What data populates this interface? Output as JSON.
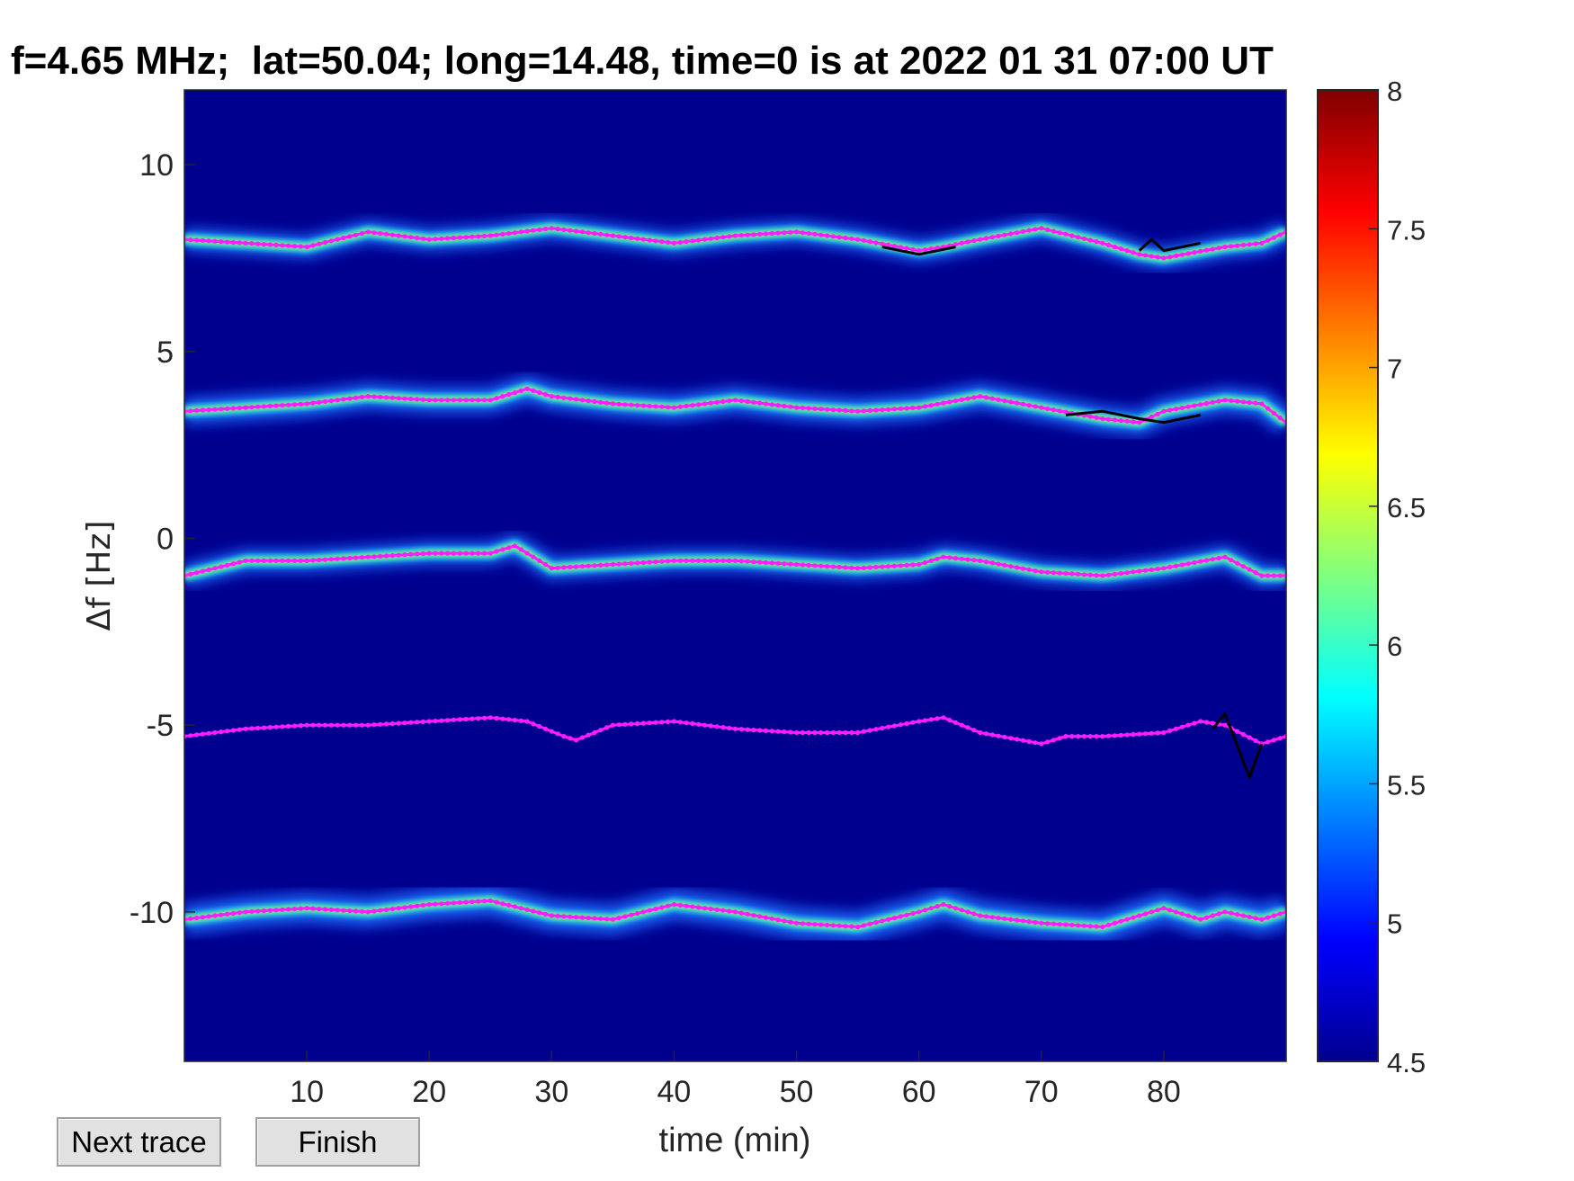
{
  "chart_data": {
    "type": "heatmap",
    "title": "f=4.65 MHz;  lat=50.04; long=14.48, time=0 is at 2022 01 31 07:00 UT",
    "xlabel": "time (min)",
    "ylabel": "Δf [Hz]",
    "xlim": [
      0,
      90
    ],
    "ylim": [
      -14,
      12
    ],
    "x_ticks": [
      10,
      20,
      30,
      40,
      50,
      60,
      70,
      80
    ],
    "x_tick_labels": [
      "10",
      "20",
      "30",
      "40",
      "50",
      "60",
      "70",
      "80"
    ],
    "y_ticks": [
      10,
      5,
      0,
      -5,
      -10
    ],
    "y_tick_labels": [
      "10",
      "5",
      "0",
      "-5",
      "-10"
    ],
    "colorbar": {
      "limits": [
        4.5,
        8
      ],
      "ticks": [
        8,
        7.5,
        7,
        6.5,
        6,
        5.5,
        5,
        4.5
      ],
      "tick_labels": [
        "8",
        "7.5",
        "7",
        "6.5",
        "6",
        "5.5",
        "5",
        "4.5"
      ],
      "colormap": "jet",
      "background_color": "#00008f"
    },
    "trace_color": "#ff1dff",
    "series": [
      {
        "x": [
          0,
          5,
          10,
          15,
          20,
          25,
          30,
          35,
          40,
          45,
          50,
          55,
          60,
          62,
          65,
          70,
          75,
          78,
          80,
          85,
          88,
          90
        ],
        "y": [
          8.0,
          7.9,
          7.8,
          8.2,
          8.0,
          8.1,
          8.3,
          8.1,
          7.9,
          8.1,
          8.2,
          8.0,
          7.7,
          7.8,
          8.0,
          8.3,
          7.9,
          7.6,
          7.5,
          7.8,
          7.9,
          8.2
        ]
      },
      {
        "x": [
          0,
          5,
          10,
          15,
          20,
          25,
          28,
          30,
          35,
          40,
          45,
          50,
          55,
          60,
          65,
          70,
          75,
          78,
          80,
          85,
          88,
          90
        ],
        "y": [
          3.4,
          3.5,
          3.6,
          3.8,
          3.7,
          3.7,
          4.0,
          3.8,
          3.6,
          3.5,
          3.7,
          3.5,
          3.4,
          3.5,
          3.8,
          3.5,
          3.2,
          3.1,
          3.4,
          3.7,
          3.6,
          3.1
        ]
      },
      {
        "x": [
          0,
          5,
          10,
          15,
          20,
          25,
          27,
          30,
          35,
          40,
          45,
          50,
          55,
          60,
          62,
          65,
          70,
          75,
          80,
          85,
          88,
          90
        ],
        "y": [
          -1.0,
          -0.6,
          -0.6,
          -0.5,
          -0.4,
          -0.4,
          -0.2,
          -0.8,
          -0.7,
          -0.6,
          -0.6,
          -0.7,
          -0.8,
          -0.7,
          -0.5,
          -0.6,
          -0.9,
          -1.0,
          -0.8,
          -0.5,
          -1.0,
          -1.0
        ]
      },
      {
        "x": [
          0,
          5,
          10,
          15,
          20,
          25,
          28,
          31,
          32,
          35,
          40,
          45,
          50,
          55,
          60,
          62,
          65,
          70,
          72,
          75,
          80,
          83,
          85,
          88,
          90
        ],
        "y": [
          -5.3,
          -5.1,
          -5.0,
          -5.0,
          -4.9,
          -4.8,
          -4.9,
          -5.3,
          -5.4,
          -5.0,
          -4.9,
          -5.1,
          -5.2,
          -5.2,
          -4.9,
          -4.8,
          -5.2,
          -5.5,
          -5.3,
          -5.3,
          -5.2,
          -4.9,
          -5.0,
          -5.5,
          -5.3
        ]
      },
      {
        "x": [
          0,
          5,
          10,
          15,
          20,
          25,
          30,
          35,
          40,
          45,
          50,
          55,
          60,
          62,
          65,
          70,
          75,
          80,
          83,
          85,
          88,
          90
        ],
        "y": [
          -10.2,
          -10.0,
          -9.9,
          -10.0,
          -9.8,
          -9.7,
          -10.1,
          -10.2,
          -9.8,
          -10.0,
          -10.3,
          -10.4,
          -10.0,
          -9.8,
          -10.1,
          -10.3,
          -10.4,
          -9.9,
          -10.2,
          -10.0,
          -10.2,
          -10.0
        ]
      }
    ],
    "black_segments": [
      {
        "x": [
          57,
          60,
          63
        ],
        "y": [
          7.8,
          7.6,
          7.8
        ]
      },
      {
        "x": [
          72,
          75,
          78,
          80,
          83
        ],
        "y": [
          3.3,
          3.4,
          3.2,
          3.1,
          3.3
        ]
      },
      {
        "x": [
          78,
          79,
          80,
          83
        ],
        "y": [
          7.7,
          8.0,
          7.7,
          7.9
        ]
      },
      {
        "x": [
          84,
          85,
          87,
          88
        ],
        "y": [
          -5.1,
          -4.7,
          -6.4,
          -5.5
        ]
      }
    ]
  },
  "buttons": {
    "next_label": "Next trace",
    "finish_label": "Finish"
  }
}
